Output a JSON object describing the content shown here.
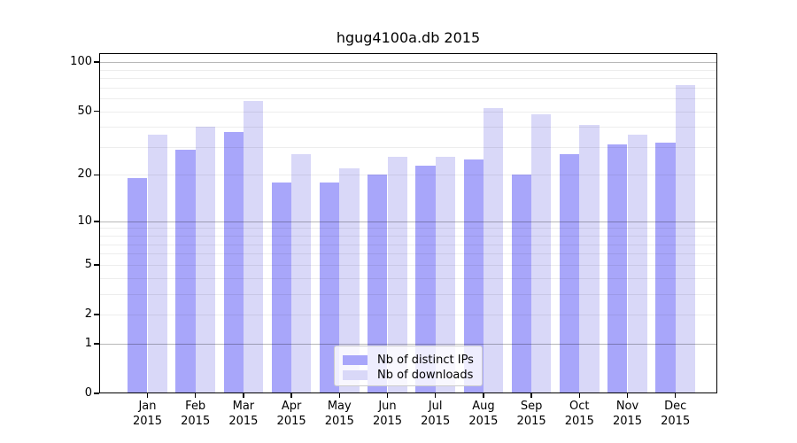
{
  "title": "hgug4100a.db 2015",
  "chart_data": {
    "type": "bar",
    "title": "hgug4100a.db 2015",
    "categories": [
      "Jan",
      "Feb",
      "Mar",
      "Apr",
      "May",
      "Jun",
      "Jul",
      "Aug",
      "Sep",
      "Oct",
      "Nov",
      "Dec"
    ],
    "year_label": "2015",
    "series": [
      {
        "name": "Nb of distinct IPs",
        "color": "#a8a6fa",
        "values": [
          19,
          29,
          37,
          18,
          18,
          20,
          23,
          25,
          20,
          27,
          31,
          32
        ]
      },
      {
        "name": "Nb of downloads",
        "color": "#d9d8f8",
        "values": [
          36,
          40,
          58,
          27,
          22,
          26,
          26,
          52,
          48,
          41,
          36,
          72
        ]
      }
    ],
    "y_axis": {
      "scale": "log1p",
      "tick_labels": [
        0,
        1,
        2,
        5,
        10,
        20,
        50,
        100
      ],
      "gridlines_major": [
        1,
        10,
        100
      ],
      "gridlines_minor": [
        2,
        3,
        4,
        5,
        6,
        7,
        8,
        9,
        20,
        30,
        40,
        50,
        60,
        70,
        80,
        90
      ],
      "range": [
        0,
        114
      ]
    },
    "xlabel": "",
    "ylabel": "",
    "grid": true,
    "legend_position": "bottom-center"
  },
  "colors": {
    "bar_ips": "#a8a6fa",
    "bar_downloads": "#d9d8f8",
    "grid_minor": "rgba(0,0,0,0.07)",
    "grid_major": "rgba(0,0,0,0.28)",
    "axis": "#000000",
    "background": "#ffffff"
  }
}
